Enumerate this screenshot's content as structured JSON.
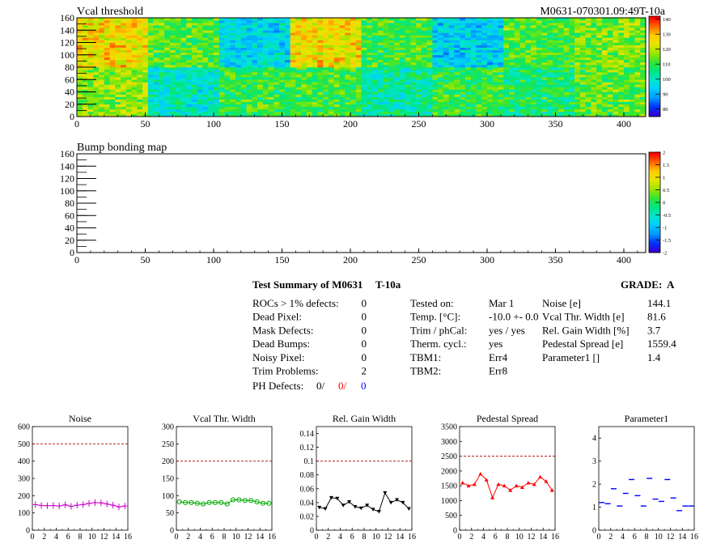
{
  "vcal_map": {
    "title": "Vcal threshold",
    "label": "M0631-070301.09:49T-10a",
    "x_ticks": [
      "0",
      "50",
      "100",
      "150",
      "200",
      "250",
      "300",
      "350",
      "400"
    ],
    "y_ticks": [
      "0",
      "20",
      "40",
      "60",
      "80",
      "100",
      "120",
      "140",
      "160"
    ],
    "xlim": [
      0,
      416
    ],
    "ylim": [
      0,
      160
    ],
    "z_ticks": [
      "80",
      "90",
      "100",
      "110",
      "120",
      "130",
      "140"
    ],
    "zlim": [
      75,
      142
    ],
    "roc_means": [
      117,
      100,
      110,
      111,
      103,
      110,
      107,
      113,
      126,
      113,
      96,
      126,
      111,
      95,
      112,
      115
    ],
    "colors_note_palette": [
      "#3300cc",
      "#0033ff",
      "#0099ff",
      "#00ccff",
      "#00e6cc",
      "#00e680",
      "#33e633",
      "#99e600",
      "#e6e600",
      "#ffcc00",
      "#ff6600",
      "#ff0000"
    ]
  },
  "bump_map": {
    "title": "Bump bonding map",
    "x_ticks": [
      "0",
      "50",
      "100",
      "150",
      "200",
      "250",
      "300",
      "350",
      "400"
    ],
    "y_ticks": [
      "0",
      "20",
      "40",
      "60",
      "80",
      "100",
      "120",
      "140",
      "160"
    ],
    "z_ticks": [
      "-2",
      "-1.5",
      "-1",
      "-0.5",
      "0",
      "0.5",
      "1",
      "1.5",
      "2"
    ]
  },
  "summary": {
    "title": "Test Summary of M0631",
    "tag": "T-10a",
    "grade_label": "GRADE:",
    "grade": "A",
    "defects": [
      {
        "label": "ROCs > 1% defects:",
        "value": "0"
      },
      {
        "label": "Dead Pixel:",
        "value": "0"
      },
      {
        "label": "Mask Defects:",
        "value": "0"
      },
      {
        "label": "Dead Bumps:",
        "value": "0"
      },
      {
        "label": "Noisy Pixel:",
        "value": "0"
      },
      {
        "label": "Trim Problems:",
        "value": "2"
      }
    ],
    "ph_label": "PH Defects:",
    "ph_values": [
      "0/",
      "0/",
      "0"
    ],
    "ph_colors": [
      "#000000",
      "#ff0000",
      "#0000ff"
    ],
    "conditions": [
      {
        "label": "Tested on:",
        "value": "Mar 1"
      },
      {
        "label": "Temp. [°C]:",
        "value": "-10.0 +- 0.0"
      },
      {
        "label": "Trim / phCal:",
        "value": "yes / yes"
      },
      {
        "label": "Therm. cycl.:",
        "value": "yes"
      },
      {
        "label": "TBM1:",
        "value": "Err4"
      },
      {
        "label": "TBM2:",
        "value": "Err8"
      }
    ],
    "results": [
      {
        "label": "Noise [e]",
        "value": "144.1"
      },
      {
        "label": "Vcal Thr. Width [e]",
        "value": "81.6"
      },
      {
        "label": "Rel. Gain Width [%]",
        "value": "3.7"
      },
      {
        "label": "Pedestal Spread [e]",
        "value": "1559.4"
      },
      {
        "label": "Parameter1 []",
        "value": "1.4"
      }
    ]
  },
  "chart_data": [
    {
      "type": "line",
      "title": "Noise",
      "x": [
        0,
        1,
        2,
        3,
        4,
        5,
        6,
        7,
        8,
        9,
        10,
        11,
        12,
        13,
        14,
        15
      ],
      "values": [
        148,
        143,
        142,
        143,
        140,
        147,
        138,
        145,
        148,
        155,
        160,
        158,
        152,
        145,
        135,
        140
      ],
      "ylim": [
        0,
        600
      ],
      "y_ticks": [
        "0",
        "100",
        "200",
        "300",
        "400",
        "500",
        "600"
      ],
      "x_ticks": [
        "0",
        "2",
        "4",
        "6",
        "8",
        "10",
        "12",
        "14",
        "16"
      ],
      "limit": 500,
      "color": "#cc00cc",
      "marker": "cross"
    },
    {
      "type": "line",
      "title": "Vcal Thr. Width",
      "x": [
        0,
        1,
        2,
        3,
        4,
        5,
        6,
        7,
        8,
        9,
        10,
        11,
        12,
        13,
        14,
        15
      ],
      "values": [
        82,
        80,
        80,
        78,
        76,
        80,
        80,
        80,
        76,
        88,
        88,
        86,
        86,
        82,
        78,
        78
      ],
      "ylim": [
        0,
        300
      ],
      "y_ticks": [
        "0",
        "50",
        "100",
        "150",
        "200",
        "250",
        "300"
      ],
      "x_ticks": [
        "0",
        "2",
        "4",
        "6",
        "8",
        "10",
        "12",
        "14",
        "16"
      ],
      "limit": 200,
      "color": "#00aa00",
      "marker": "circle"
    },
    {
      "type": "line",
      "title": "Rel. Gain Width",
      "x": [
        0,
        1,
        2,
        3,
        4,
        5,
        6,
        7,
        8,
        9,
        10,
        11,
        12,
        13,
        14,
        15
      ],
      "values": [
        0.033,
        0.031,
        0.047,
        0.046,
        0.036,
        0.041,
        0.034,
        0.032,
        0.036,
        0.03,
        0.027,
        0.054,
        0.04,
        0.044,
        0.04,
        0.031
      ],
      "ylim": [
        0,
        0.15
      ],
      "y_ticks": [
        "0",
        "0.02",
        "0.04",
        "0.06",
        "0.08",
        "0.1",
        "0.12",
        "0.14"
      ],
      "x_ticks": [
        "0",
        "2",
        "4",
        "6",
        "8",
        "10",
        "12",
        "14",
        "16"
      ],
      "limit": 0.1,
      "color": "#000000",
      "marker": "triangle-down"
    },
    {
      "type": "line",
      "title": "Pedestal Spread",
      "x": [
        0,
        1,
        2,
        3,
        4,
        5,
        6,
        7,
        8,
        9,
        10,
        11,
        12,
        13,
        14,
        15
      ],
      "values": [
        1600,
        1500,
        1550,
        1900,
        1700,
        1100,
        1550,
        1500,
        1350,
        1500,
        1450,
        1600,
        1550,
        1800,
        1650,
        1350
      ],
      "ylim": [
        0,
        3500
      ],
      "y_ticks": [
        "0",
        "500",
        "1000",
        "1500",
        "2000",
        "2500",
        "3000",
        "3500"
      ],
      "x_ticks": [
        "0",
        "2",
        "4",
        "6",
        "8",
        "10",
        "12",
        "14",
        "16"
      ],
      "limit": 2500,
      "color": "#ff0000",
      "marker": "triangle-up"
    },
    {
      "type": "scatter",
      "title": "Parameter1",
      "x": [
        0,
        1,
        2,
        3,
        4,
        5,
        6,
        7,
        8,
        9,
        10,
        11,
        12,
        13,
        14,
        15
      ],
      "values": [
        1.2,
        1.15,
        1.8,
        1.05,
        1.6,
        2.2,
        1.5,
        1.05,
        2.25,
        1.35,
        1.25,
        2.2,
        1.4,
        0.85,
        1.05,
        1.05
      ],
      "ylim": [
        0,
        4.5
      ],
      "y_ticks": [
        "0",
        "1",
        "2",
        "3",
        "4"
      ],
      "x_ticks": [
        "0",
        "2",
        "4",
        "6",
        "8",
        "10",
        "12",
        "14",
        "16"
      ],
      "color": "#0000ff",
      "marker": "hbar"
    }
  ]
}
